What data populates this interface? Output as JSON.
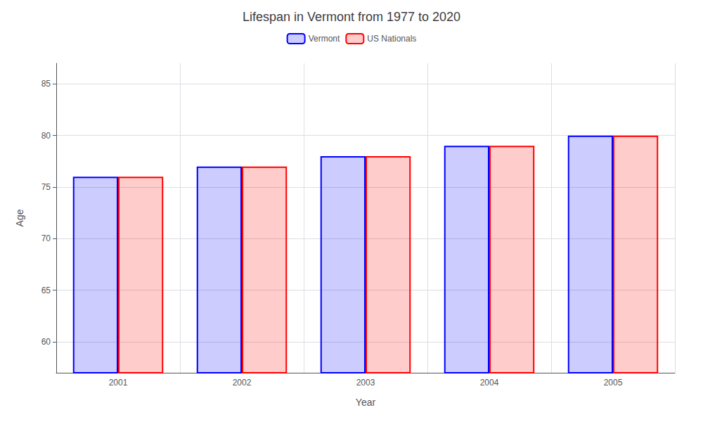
{
  "chart_data": {
    "type": "bar",
    "title": "Lifespan in Vermont from 1977 to 2020",
    "xlabel": "Year",
    "ylabel": "Age",
    "categories": [
      "2001",
      "2002",
      "2003",
      "2004",
      "2005"
    ],
    "series": [
      {
        "name": "Vermont",
        "color": "#0000ff",
        "values": [
          76,
          77,
          78,
          79,
          80
        ]
      },
      {
        "name": "US Nationals",
        "color": "#ff0000",
        "values": [
          76,
          77,
          78,
          79,
          80
        ]
      }
    ],
    "ylim": [
      57,
      87
    ],
    "yticks": [
      60,
      65,
      70,
      75,
      80,
      85
    ],
    "grid": true,
    "legend": "top"
  }
}
